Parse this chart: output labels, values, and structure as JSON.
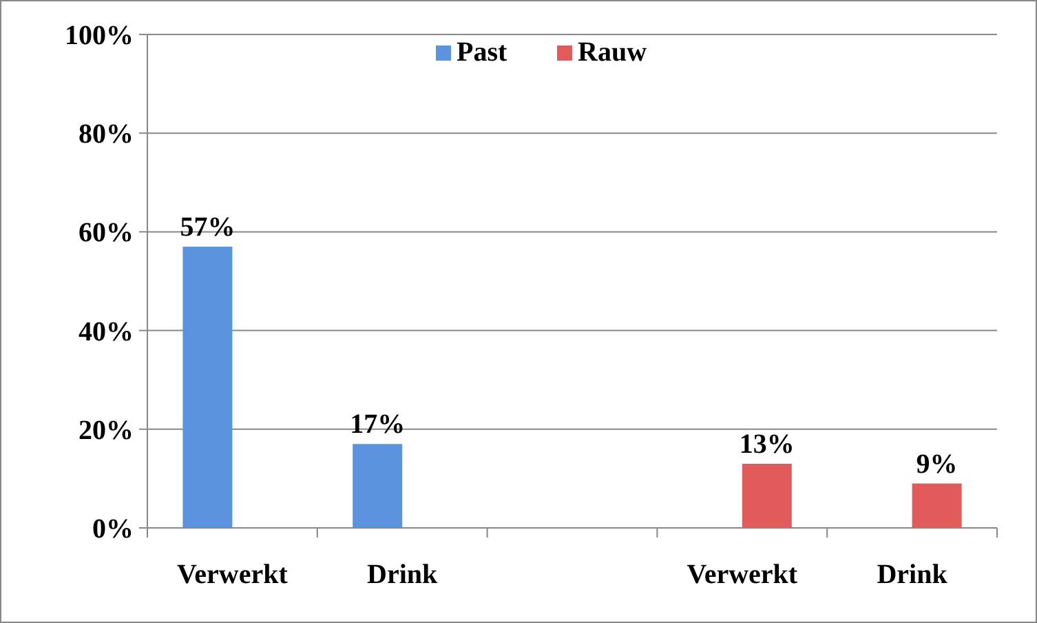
{
  "chart_data": {
    "type": "bar",
    "categories": [
      "Verwerkt",
      "Drink",
      null,
      "Verwerkt",
      "Drink"
    ],
    "series": [
      {
        "name": "Past",
        "color": "#5b93df",
        "values": [
          57,
          17,
          null,
          null,
          null
        ],
        "value_labels": [
          "57%",
          "17%",
          null,
          null,
          null
        ]
      },
      {
        "name": "Rauw",
        "color": "#e25b5b",
        "values": [
          null,
          null,
          null,
          13,
          9
        ],
        "value_labels": [
          null,
          null,
          null,
          "13%",
          "9%"
        ]
      }
    ],
    "ylim": [
      0,
      100
    ],
    "yticks": [
      {
        "value": 0,
        "label": "0%"
      },
      {
        "value": 20,
        "label": "20%"
      },
      {
        "value": 40,
        "label": "40%"
      },
      {
        "value": 60,
        "label": "60%"
      },
      {
        "value": 80,
        "label": "80%"
      },
      {
        "value": 100,
        "label": "100%"
      }
    ],
    "grid": "y",
    "legend": "top"
  }
}
